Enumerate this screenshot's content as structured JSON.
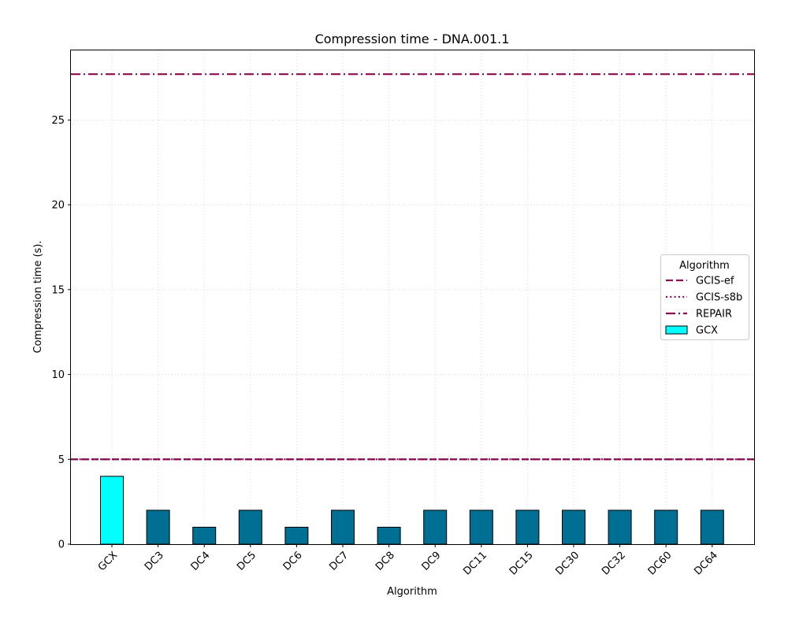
{
  "chart_data": {
    "type": "bar",
    "title": "Compression time -  DNA.001.1",
    "xlabel": "Algorithm",
    "ylabel": "Compression time (s).",
    "categories": [
      "GCX",
      "DC3",
      "DC4",
      "DC5",
      "DC6",
      "DC7",
      "DC8",
      "DC9",
      "DC11",
      "DC15",
      "DC30",
      "DC32",
      "DC60",
      "DC64"
    ],
    "values": [
      4,
      2,
      1,
      2,
      1,
      2,
      1,
      2,
      2,
      2,
      2,
      2,
      2,
      2
    ],
    "bar_colors": [
      "#00ffff",
      "#006f94",
      "#006f94",
      "#006f94",
      "#006f94",
      "#006f94",
      "#006f94",
      "#006f94",
      "#006f94",
      "#006f94",
      "#006f94",
      "#006f94",
      "#006f94",
      "#006f94"
    ],
    "ylim": [
      0,
      29.1
    ],
    "yticks": [
      0,
      5,
      10,
      15,
      20,
      25
    ],
    "grid": true,
    "reference_lines": [
      {
        "name": "GCIS-ef",
        "value": 5,
        "style": "dashed",
        "color": "#8b0a50"
      },
      {
        "name": "GCIS-s8b",
        "value": 5,
        "style": "dotted",
        "color": "#8b0a50"
      },
      {
        "name": "REPAIR",
        "value": 27.7,
        "style": "dashdot",
        "color": "#8b0a50"
      }
    ],
    "legend": {
      "title": "Algorithm",
      "placement": "center-right",
      "entries": [
        {
          "label": "GCIS-ef",
          "kind": "line",
          "style": "dashed",
          "color": "#8b0a50"
        },
        {
          "label": "GCIS-s8b",
          "kind": "line",
          "style": "dotted",
          "color": "#8b0a50"
        },
        {
          "label": "REPAIR",
          "kind": "line",
          "style": "dashdot",
          "color": "#8b0a50"
        },
        {
          "label": "GCX",
          "kind": "patch",
          "color": "#00ffff"
        }
      ]
    }
  }
}
